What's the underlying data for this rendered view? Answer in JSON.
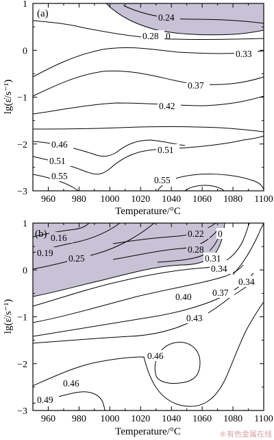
{
  "chart_data": [
    {
      "type": "contour",
      "panel_label": "(a)",
      "xlabel": "Temperature/°C",
      "ylabel": "lg(ε̇/s⁻¹)",
      "xlim": [
        950,
        1100
      ],
      "ylim": [
        -3,
        1
      ],
      "xticks": [
        "960",
        "980",
        "1000",
        "1020",
        "1040",
        "1060",
        "1080",
        "1100"
      ],
      "yticks": [
        "1",
        "0",
        "−1",
        "−2",
        "−3"
      ],
      "contour_labels": [
        "0.24",
        "0.28",
        "0",
        "0.33",
        "0.37",
        "0.42",
        "0.46",
        "0.51",
        "0.51",
        "0.55",
        "0.55"
      ],
      "shaded_region": "instability domain (top-right)",
      "shade_color": "#c8c2d6"
    },
    {
      "type": "contour",
      "panel_label": "(b)",
      "xlabel": "Temperature/°C",
      "ylabel": "lg(ε̇/s⁻¹)",
      "xlim": [
        950,
        1100
      ],
      "ylim": [
        -3,
        1
      ],
      "xticks": [
        "960",
        "980",
        "1000",
        "1020",
        "1040",
        "1060",
        "1080",
        "1100"
      ],
      "yticks": [
        "1",
        "0",
        "−1",
        "−2",
        "−3"
      ],
      "contour_labels": [
        "0.16",
        "0.19",
        "0.25",
        "0.22",
        "0.28",
        "0",
        "0.31",
        "0.34",
        "0.34",
        "0.37",
        "0.40",
        "0.43",
        "0.46",
        "0.46",
        "0.49"
      ],
      "shaded_region": "instability domain (top-left)",
      "shade_color": "#c8c2d6"
    }
  ],
  "watermark": "®有色金属在线"
}
